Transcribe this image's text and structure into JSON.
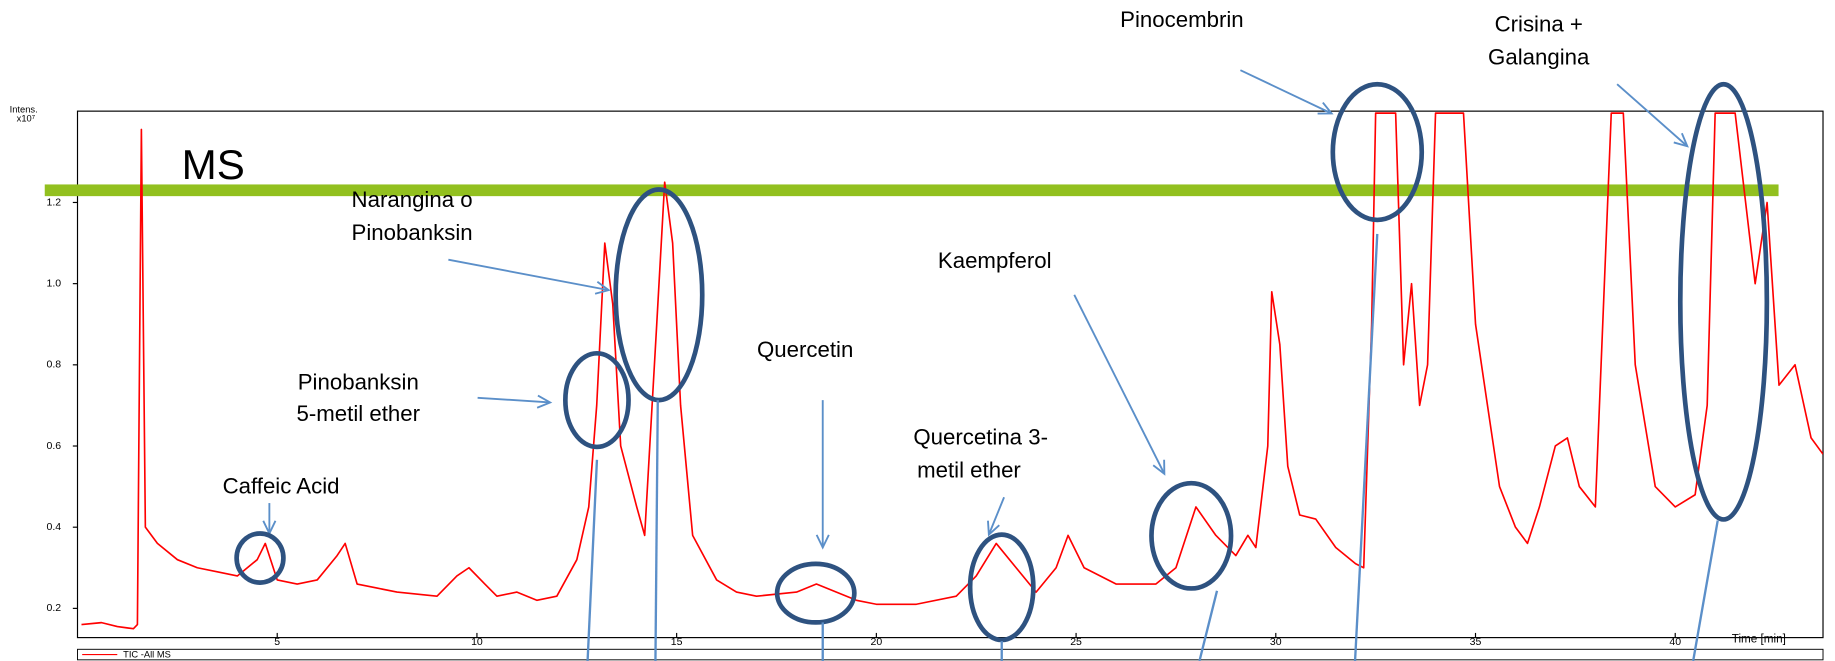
{
  "chart_data": {
    "type": "line",
    "y_label": "Intens.",
    "y_label_scale": "x10⁷",
    "x_label": "Time [min]",
    "x": [
      0.1,
      0.6,
      1.0,
      1.4,
      1.5,
      1.6,
      1.7,
      2.0,
      2.5,
      3.0,
      3.5,
      4.0,
      4.5,
      4.7,
      5.0,
      5.5,
      6.0,
      6.5,
      6.7,
      7.0,
      7.5,
      8.0,
      9.0,
      9.5,
      9.8,
      10.2,
      10.5,
      11.0,
      11.5,
      12.0,
      12.5,
      12.8,
      13.0,
      13.2,
      13.4,
      13.6,
      14.0,
      14.2,
      14.5,
      14.7,
      14.9,
      15.1,
      15.4,
      16.0,
      16.5,
      17.0,
      18.0,
      18.5,
      19.0,
      19.5,
      20.0,
      21.0,
      22.0,
      22.5,
      23.0,
      23.5,
      24.0,
      24.5,
      24.8,
      25.2,
      26.0,
      27.0,
      27.5,
      28.0,
      28.5,
      29.0,
      29.3,
      29.5,
      29.8,
      29.9,
      30.1,
      30.3,
      30.6,
      31.0,
      31.5,
      32.0,
      32.2,
      32.4,
      32.5,
      32.8,
      33.0,
      33.2,
      33.4,
      33.6,
      33.8,
      34.0,
      34.4,
      34.7,
      35.0,
      35.3,
      35.6,
      36.0,
      36.3,
      36.6,
      37.0,
      37.3,
      37.6,
      38.0,
      38.4,
      38.7,
      39.0,
      39.5,
      40.0,
      40.5,
      40.8,
      41.0,
      41.5,
      42.0,
      42.3,
      42.6,
      43.0,
      43.4,
      43.7
    ],
    "series": [
      {
        "name": "TIC -All MS",
        "color": "#ff0000",
        "values": [
          0.16,
          0.165,
          0.155,
          0.15,
          0.16,
          1.38,
          0.4,
          0.36,
          0.32,
          0.3,
          0.29,
          0.28,
          0.32,
          0.36,
          0.27,
          0.26,
          0.27,
          0.33,
          0.36,
          0.26,
          0.25,
          0.24,
          0.23,
          0.28,
          0.3,
          0.26,
          0.23,
          0.24,
          0.22,
          0.23,
          0.32,
          0.45,
          0.7,
          1.1,
          0.95,
          0.6,
          0.45,
          0.38,
          0.9,
          1.25,
          1.1,
          0.7,
          0.38,
          0.27,
          0.24,
          0.23,
          0.24,
          0.26,
          0.24,
          0.22,
          0.21,
          0.21,
          0.23,
          0.28,
          0.36,
          0.3,
          0.24,
          0.3,
          0.38,
          0.3,
          0.26,
          0.26,
          0.3,
          0.45,
          0.38,
          0.33,
          0.38,
          0.35,
          0.6,
          0.98,
          0.85,
          0.55,
          0.43,
          0.42,
          0.35,
          0.31,
          0.3,
          0.9,
          1.42,
          1.42,
          1.42,
          0.8,
          1.0,
          0.7,
          0.8,
          1.42,
          1.42,
          1.42,
          0.9,
          0.7,
          0.5,
          0.4,
          0.36,
          0.45,
          0.6,
          0.62,
          0.5,
          0.45,
          1.42,
          1.42,
          0.8,
          0.5,
          0.45,
          0.48,
          0.7,
          1.42,
          1.42,
          1.0,
          1.2,
          0.75,
          0.8,
          0.62,
          0.58
        ]
      }
    ],
    "xlim": [
      0,
      43.7
    ],
    "ylim": [
      0.128,
      1.425
    ],
    "xticks": [
      5,
      10,
      15,
      20,
      25,
      30,
      35,
      40
    ],
    "yticks": [
      0.2,
      0.4,
      0.6,
      0.8,
      {
        "value": 1,
        "label": "1.0"
      },
      1.2
    ],
    "reference_line": {
      "label": "MS",
      "value": 1.23,
      "color": "#92c01f"
    },
    "annotations": [
      [
        "Pinocembrin"
      ],
      [
        "Crisina +",
        "Galangina"
      ],
      [
        "Narangina o",
        "Pinobanksin"
      ],
      [
        "Pinobanksin",
        "5-metil ether"
      ],
      [
        "Caffeic Acid"
      ],
      [
        "Quercetin"
      ],
      [
        "Kaempferol"
      ],
      [
        "Quercetina 3-",
        "metil ether"
      ]
    ]
  }
}
